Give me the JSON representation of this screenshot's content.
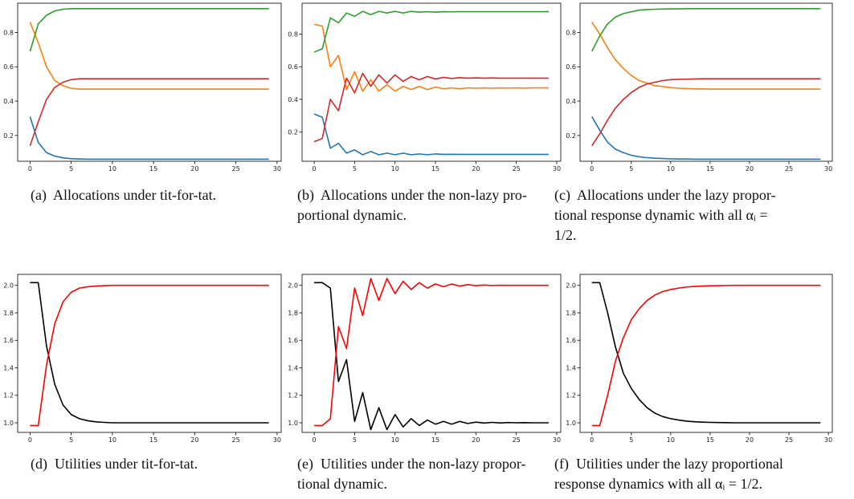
{
  "captions": [
    "(a)  Allocations under tit-for-tat.",
    "(b)  Allocations under the non-lazy pro-\nportional dynamic.",
    "(c)  Allocations under the lazy propor-\ntional response dynamic with all αᵢ =\n1/2.",
    "(d)  Utilities under tit-for-tat.",
    "(e)  Utilities under the non-lazy propor-\ntional dynamic.",
    "(f)  Utilities under the lazy proportional\nresponse dynamics with all αᵢ = 1/2."
  ],
  "chart_data": [
    {
      "type": "line",
      "xlim": [
        -1.5,
        30.5
      ],
      "ylim": [
        0.05,
        0.97
      ],
      "xticks": [
        0,
        5,
        10,
        15,
        20,
        25,
        30
      ],
      "yticks": [
        0.2,
        0.4,
        0.6,
        0.8
      ],
      "ytick_labels": [
        "0.2",
        "0.4",
        "0.6",
        "0.8"
      ],
      "x": [
        0,
        1,
        2,
        3,
        4,
        5,
        6,
        7,
        8,
        9,
        10,
        11,
        12,
        13,
        14,
        15,
        16,
        17,
        18,
        19,
        20,
        21,
        22,
        23,
        24,
        25,
        26,
        27,
        28,
        29
      ],
      "series": [
        {
          "color": "#1f77b4",
          "values": [
            0.31,
            0.16,
            0.1,
            0.08,
            0.07,
            0.065,
            0.063,
            0.062,
            0.062,
            0.062,
            0.062,
            0.062,
            0.062,
            0.062,
            0.062,
            0.062,
            0.062,
            0.062,
            0.062,
            0.062,
            0.062,
            0.062,
            0.062,
            0.062,
            0.062,
            0.062,
            0.062,
            0.062,
            0.062,
            0.062
          ]
        },
        {
          "color": "#ff7f0e",
          "values": [
            0.86,
            0.74,
            0.6,
            0.52,
            0.49,
            0.475,
            0.47,
            0.47,
            0.47,
            0.47,
            0.47,
            0.47,
            0.47,
            0.47,
            0.47,
            0.47,
            0.47,
            0.47,
            0.47,
            0.47,
            0.47,
            0.47,
            0.47,
            0.47,
            0.47,
            0.47,
            0.47,
            0.47,
            0.47,
            0.47
          ]
        },
        {
          "color": "#2ca02c",
          "values": [
            0.69,
            0.85,
            0.9,
            0.925,
            0.935,
            0.938,
            0.938,
            0.938,
            0.938,
            0.938,
            0.938,
            0.938,
            0.938,
            0.938,
            0.938,
            0.938,
            0.938,
            0.938,
            0.938,
            0.938,
            0.938,
            0.938,
            0.938,
            0.938,
            0.938,
            0.938,
            0.938,
            0.938,
            0.938,
            0.938
          ]
        },
        {
          "color": "#d62728",
          "values": [
            0.14,
            0.28,
            0.41,
            0.48,
            0.51,
            0.525,
            0.53,
            0.53,
            0.53,
            0.53,
            0.53,
            0.53,
            0.53,
            0.53,
            0.53,
            0.53,
            0.53,
            0.53,
            0.53,
            0.53,
            0.53,
            0.53,
            0.53,
            0.53,
            0.53,
            0.53,
            0.53,
            0.53,
            0.53,
            0.53
          ]
        }
      ]
    },
    {
      "type": "line",
      "xlim": [
        -1.5,
        30.5
      ],
      "ylim": [
        0.02,
        0.99
      ],
      "xticks": [
        0,
        5,
        10,
        15,
        20,
        25,
        30
      ],
      "yticks": [
        0.2,
        0.4,
        0.6,
        0.8
      ],
      "ytick_labels": [
        "0.2",
        "0.4",
        "0.6",
        "0.8"
      ],
      "x": [
        0,
        1,
        2,
        3,
        4,
        5,
        6,
        7,
        8,
        9,
        10,
        11,
        12,
        13,
        14,
        15,
        16,
        17,
        18,
        19,
        20,
        21,
        22,
        23,
        24,
        25,
        26,
        27,
        28,
        29
      ],
      "series": [
        {
          "color": "#1f77b4",
          "values": [
            0.31,
            0.29,
            0.1,
            0.13,
            0.07,
            0.09,
            0.06,
            0.08,
            0.06,
            0.07,
            0.06,
            0.07,
            0.06,
            0.065,
            0.06,
            0.065,
            0.062,
            0.063,
            0.062,
            0.062,
            0.062,
            0.062,
            0.062,
            0.062,
            0.062,
            0.062,
            0.062,
            0.062,
            0.062,
            0.062
          ]
        },
        {
          "color": "#ff7f0e",
          "values": [
            0.86,
            0.85,
            0.6,
            0.67,
            0.46,
            0.57,
            0.45,
            0.52,
            0.45,
            0.49,
            0.45,
            0.48,
            0.46,
            0.48,
            0.46,
            0.475,
            0.465,
            0.47,
            0.465,
            0.47,
            0.468,
            0.47,
            0.468,
            0.47,
            0.469,
            0.47,
            0.469,
            0.47,
            0.47,
            0.47
          ]
        },
        {
          "color": "#2ca02c",
          "values": [
            0.69,
            0.71,
            0.9,
            0.87,
            0.93,
            0.91,
            0.94,
            0.92,
            0.94,
            0.93,
            0.94,
            0.93,
            0.94,
            0.935,
            0.938,
            0.935,
            0.938,
            0.937,
            0.938,
            0.938,
            0.938,
            0.938,
            0.938,
            0.938,
            0.938,
            0.938,
            0.938,
            0.938,
            0.938,
            0.938
          ]
        },
        {
          "color": "#d62728",
          "values": [
            0.14,
            0.16,
            0.4,
            0.33,
            0.53,
            0.44,
            0.56,
            0.48,
            0.55,
            0.5,
            0.55,
            0.51,
            0.54,
            0.52,
            0.54,
            0.525,
            0.535,
            0.528,
            0.533,
            0.53,
            0.532,
            0.53,
            0.531,
            0.53,
            0.53,
            0.53,
            0.53,
            0.53,
            0.53,
            0.53
          ]
        }
      ]
    },
    {
      "type": "line",
      "xlim": [
        -1.5,
        30.5
      ],
      "ylim": [
        0.05,
        0.97
      ],
      "xticks": [
        0,
        5,
        10,
        15,
        20,
        25,
        30
      ],
      "yticks": [
        0.2,
        0.4,
        0.6,
        0.8
      ],
      "ytick_labels": [
        "0.2",
        "0.4",
        "0.6",
        "0.8"
      ],
      "x": [
        0,
        1,
        2,
        3,
        4,
        5,
        6,
        7,
        8,
        9,
        10,
        11,
        12,
        13,
        14,
        15,
        16,
        17,
        18,
        19,
        20,
        21,
        22,
        23,
        24,
        25,
        26,
        27,
        28,
        29
      ],
      "series": [
        {
          "color": "#1f77b4",
          "values": [
            0.31,
            0.23,
            0.16,
            0.12,
            0.1,
            0.085,
            0.076,
            0.071,
            0.068,
            0.066,
            0.064,
            0.063,
            0.063,
            0.062,
            0.062,
            0.062,
            0.062,
            0.062,
            0.062,
            0.062,
            0.062,
            0.062,
            0.062,
            0.062,
            0.062,
            0.062,
            0.062,
            0.062,
            0.062,
            0.062
          ]
        },
        {
          "color": "#ff7f0e",
          "values": [
            0.86,
            0.79,
            0.71,
            0.64,
            0.59,
            0.55,
            0.52,
            0.505,
            0.49,
            0.485,
            0.478,
            0.475,
            0.473,
            0.472,
            0.471,
            0.47,
            0.47,
            0.47,
            0.47,
            0.47,
            0.47,
            0.47,
            0.47,
            0.47,
            0.47,
            0.47,
            0.47,
            0.47,
            0.47,
            0.47
          ]
        },
        {
          "color": "#2ca02c",
          "values": [
            0.69,
            0.78,
            0.85,
            0.89,
            0.91,
            0.92,
            0.93,
            0.933,
            0.935,
            0.936,
            0.937,
            0.937,
            0.938,
            0.938,
            0.938,
            0.938,
            0.938,
            0.938,
            0.938,
            0.938,
            0.938,
            0.938,
            0.938,
            0.938,
            0.938,
            0.938,
            0.938,
            0.938,
            0.938,
            0.938
          ]
        },
        {
          "color": "#d62728",
          "values": [
            0.14,
            0.21,
            0.29,
            0.36,
            0.41,
            0.45,
            0.48,
            0.5,
            0.51,
            0.52,
            0.525,
            0.527,
            0.528,
            0.529,
            0.53,
            0.53,
            0.53,
            0.53,
            0.53,
            0.53,
            0.53,
            0.53,
            0.53,
            0.53,
            0.53,
            0.53,
            0.53,
            0.53,
            0.53,
            0.53
          ]
        }
      ]
    },
    {
      "type": "line",
      "xlim": [
        -1.5,
        30.5
      ],
      "ylim": [
        0.93,
        2.08
      ],
      "xticks": [
        0,
        5,
        10,
        15,
        20,
        25,
        30
      ],
      "yticks": [
        1.0,
        1.2,
        1.4,
        1.6,
        1.8,
        2.0
      ],
      "ytick_labels": [
        "1.0",
        "1.2",
        "1.4",
        "1.6",
        "1.8",
        "2.0"
      ],
      "x": [
        0,
        1,
        2,
        3,
        4,
        5,
        6,
        7,
        8,
        9,
        10,
        11,
        12,
        13,
        14,
        15,
        16,
        17,
        18,
        19,
        20,
        21,
        22,
        23,
        24,
        25,
        26,
        27,
        28,
        29
      ],
      "series": [
        {
          "color": "#000000",
          "values": [
            2.02,
            2.02,
            1.56,
            1.28,
            1.13,
            1.06,
            1.03,
            1.015,
            1.007,
            1.003,
            1.0,
            1.0,
            1.0,
            1.0,
            1.0,
            1.0,
            1.0,
            1.0,
            1.0,
            1.0,
            1.0,
            1.0,
            1.0,
            1.0,
            1.0,
            1.0,
            1.0,
            1.0,
            1.0,
            1.0
          ]
        },
        {
          "color": "#ff0000",
          "values": [
            0.98,
            0.98,
            1.42,
            1.72,
            1.88,
            1.95,
            1.98,
            1.99,
            1.995,
            1.998,
            2.0,
            2.0,
            2.0,
            2.0,
            2.0,
            2.0,
            2.0,
            2.0,
            2.0,
            2.0,
            2.0,
            2.0,
            2.0,
            2.0,
            2.0,
            2.0,
            2.0,
            2.0,
            2.0,
            2.0
          ]
        }
      ]
    },
    {
      "type": "line",
      "xlim": [
        -1.5,
        30.5
      ],
      "ylim": [
        0.93,
        2.08
      ],
      "xticks": [
        0,
        5,
        10,
        15,
        20,
        25,
        30
      ],
      "yticks": [
        1.0,
        1.2,
        1.4,
        1.6,
        1.8,
        2.0
      ],
      "ytick_labels": [
        "1.0",
        "1.2",
        "1.4",
        "1.6",
        "1.8",
        "2.0"
      ],
      "x": [
        0,
        1,
        2,
        3,
        4,
        5,
        6,
        7,
        8,
        9,
        10,
        11,
        12,
        13,
        14,
        15,
        16,
        17,
        18,
        19,
        20,
        21,
        22,
        23,
        24,
        25,
        26,
        27,
        28,
        29
      ],
      "series": [
        {
          "color": "#000000",
          "values": [
            2.02,
            2.02,
            1.98,
            1.3,
            1.46,
            1.01,
            1.22,
            0.95,
            1.11,
            0.95,
            1.06,
            0.97,
            1.03,
            0.98,
            1.02,
            0.99,
            1.01,
            0.99,
            1.01,
            0.995,
            1.005,
            0.998,
            1.003,
            0.999,
            1.002,
            1.0,
            1.001,
            1.0,
            1.0,
            1.0
          ]
        },
        {
          "color": "#ff0000",
          "values": [
            0.98,
            0.98,
            1.03,
            1.7,
            1.54,
            1.98,
            1.78,
            2.05,
            1.89,
            2.05,
            1.94,
            2.03,
            1.97,
            2.02,
            1.98,
            2.01,
            1.99,
            2.01,
            1.995,
            2.005,
            1.998,
            2.002,
            1.999,
            2.001,
            2.0,
            2.0,
            2.0,
            2.0,
            2.0,
            2.0
          ]
        }
      ]
    },
    {
      "type": "line",
      "xlim": [
        -1.5,
        30.5
      ],
      "ylim": [
        0.93,
        2.08
      ],
      "xticks": [
        0,
        5,
        10,
        15,
        20,
        25,
        30
      ],
      "yticks": [
        1.0,
        1.2,
        1.4,
        1.6,
        1.8,
        2.0
      ],
      "ytick_labels": [
        "1.0",
        "1.2",
        "1.4",
        "1.6",
        "1.8",
        "2.0"
      ],
      "x": [
        0,
        1,
        2,
        3,
        4,
        5,
        6,
        7,
        8,
        9,
        10,
        11,
        12,
        13,
        14,
        15,
        16,
        17,
        18,
        19,
        20,
        21,
        22,
        23,
        24,
        25,
        26,
        27,
        28,
        29
      ],
      "series": [
        {
          "color": "#000000",
          "values": [
            2.02,
            2.02,
            1.8,
            1.55,
            1.36,
            1.25,
            1.17,
            1.11,
            1.07,
            1.045,
            1.03,
            1.02,
            1.012,
            1.008,
            1.005,
            1.003,
            1.002,
            1.001,
            1.0,
            1.0,
            1.0,
            1.0,
            1.0,
            1.0,
            1.0,
            1.0,
            1.0,
            1.0,
            1.0,
            1.0
          ]
        },
        {
          "color": "#ff0000",
          "values": [
            0.98,
            0.98,
            1.2,
            1.45,
            1.62,
            1.75,
            1.83,
            1.89,
            1.93,
            1.955,
            1.97,
            1.98,
            1.988,
            1.992,
            1.995,
            1.997,
            1.998,
            1.999,
            2.0,
            2.0,
            2.0,
            2.0,
            2.0,
            2.0,
            2.0,
            2.0,
            2.0,
            2.0,
            2.0,
            2.0
          ]
        }
      ]
    }
  ]
}
